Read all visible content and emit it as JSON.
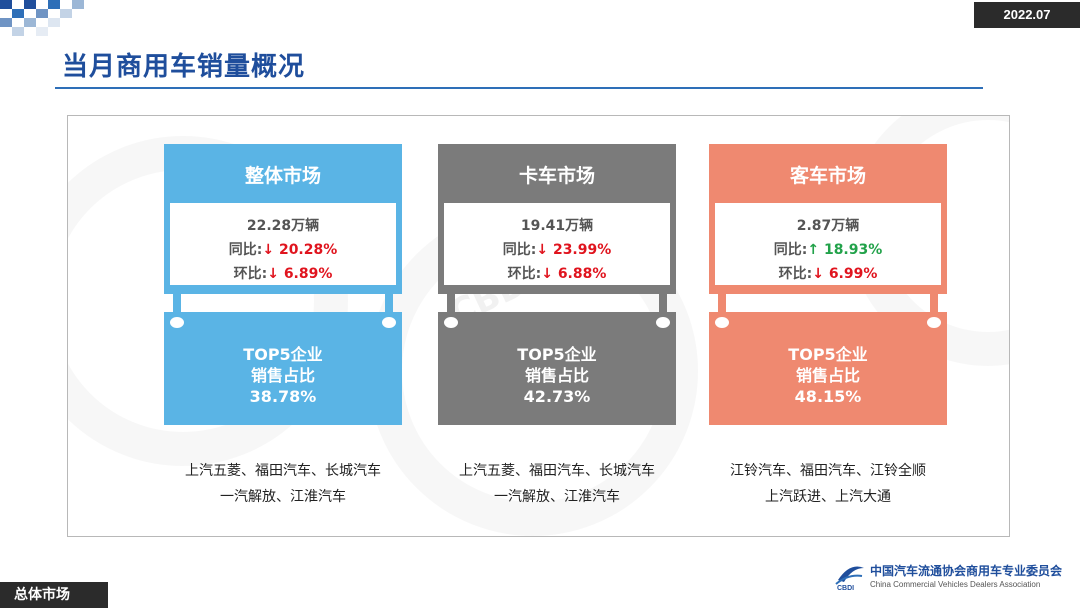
{
  "header": {
    "date": "2022.07",
    "title": "当月商用车销量概况"
  },
  "markets": [
    {
      "title": "整体市场",
      "total": "22.28万辆",
      "yoy_label": "同比:",
      "yoy_arrow": "↓",
      "yoy_value": "20.28%",
      "mom_label": "环比:",
      "mom_arrow": "↓",
      "mom_value": " 6.89%",
      "top5_line1": "TOP5企业",
      "top5_line2": "销售占比",
      "top5_share": "38.78%",
      "companies_line1": "上汽五菱、福田汽车、长城汽车",
      "companies_line2": "一汽解放、江淮汽车",
      "color": "#5ab4e5"
    },
    {
      "title": "卡车市场",
      "total": "19.41万辆",
      "yoy_label": "同比:",
      "yoy_arrow": "↓",
      "yoy_value": "23.99%",
      "mom_label": "环比:",
      "mom_arrow": "↓",
      "mom_value": " 6.88%",
      "top5_line1": "TOP5企业",
      "top5_line2": "销售占比",
      "top5_share": "42.73%",
      "companies_line1": "上汽五菱、福田汽车、长城汽车",
      "companies_line2": "一汽解放、江淮汽车",
      "color": "#7b7b7b"
    },
    {
      "title": "客车市场",
      "total": "2.87万辆",
      "yoy_label": "同比:",
      "yoy_arrow": "↑",
      "yoy_value": "18.93%",
      "mom_label": "环比:",
      "mom_arrow": "↓",
      "mom_value": " 6.99%",
      "top5_line1": "TOP5企业",
      "top5_line2": "销售占比",
      "top5_share": "48.15%",
      "companies_line1": "江铃汽车、福田汽车、江铃全顺",
      "companies_line2": "上汽跃进、上汽大通",
      "color": "#ef8970"
    }
  ],
  "colors": {
    "title_blue": "#1f4e9c",
    "down_red": "#e0141e",
    "up_green": "#22a24a"
  },
  "footer": {
    "section": "总体市场",
    "org_name_cn": "中国汽车流通协会商用车专业委员会",
    "org_name_en": "China Commercial Vehicles Dealers Association",
    "org_logo_text": "CBDI"
  }
}
